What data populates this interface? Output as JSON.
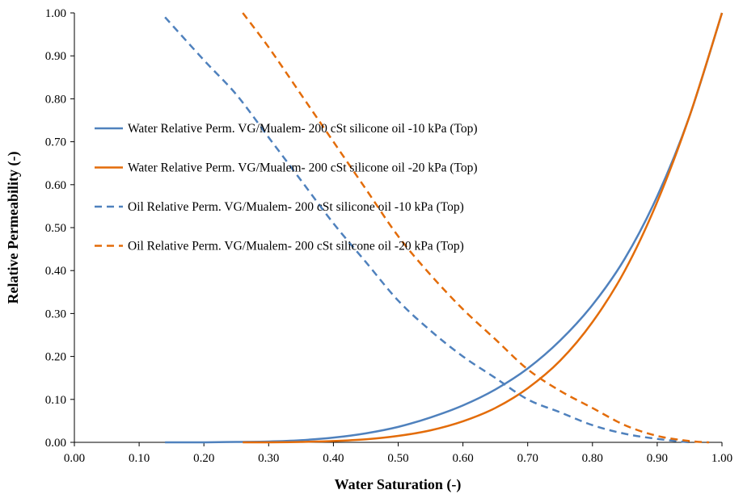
{
  "chart_data": {
    "type": "line",
    "title": "",
    "xlabel": "Water Saturation (-)",
    "ylabel": "Relative Permeability (-)",
    "xlim": [
      0,
      1
    ],
    "ylim": [
      0,
      1
    ],
    "xticks": [
      "0.00",
      "0.10",
      "0.20",
      "0.30",
      "0.40",
      "0.50",
      "0.60",
      "0.70",
      "0.80",
      "0.90",
      "1.00"
    ],
    "yticks": [
      "0.00",
      "0.10",
      "0.20",
      "0.30",
      "0.40",
      "0.50",
      "0.60",
      "0.70",
      "0.80",
      "0.90",
      "1.00"
    ],
    "grid": false,
    "legend_position": "center-left",
    "series": [
      {
        "name": "Water Relative Perm. VG/Mualem- 200 cSt silicone oil -10 kPa (Top)",
        "color": "#4f81bd",
        "dash": "solid",
        "x": [
          0.14,
          0.2,
          0.25,
          0.3,
          0.35,
          0.4,
          0.45,
          0.5,
          0.55,
          0.6,
          0.65,
          0.7,
          0.75,
          0.8,
          0.85,
          0.9,
          0.95,
          1.0
        ],
        "y": [
          0.0,
          0.0,
          0.001,
          0.002,
          0.005,
          0.011,
          0.021,
          0.036,
          0.058,
          0.086,
          0.123,
          0.172,
          0.237,
          0.32,
          0.428,
          0.573,
          0.76,
          1.0
        ]
      },
      {
        "name": "Water Relative Perm. VG/Mualem- 200 cSt silicone oil -20 kPa (Top)",
        "color": "#e36c09",
        "dash": "solid",
        "x": [
          0.26,
          0.3,
          0.35,
          0.4,
          0.45,
          0.5,
          0.55,
          0.6,
          0.65,
          0.7,
          0.75,
          0.8,
          0.85,
          0.9,
          0.95,
          1.0
        ],
        "y": [
          0.0,
          0.0,
          0.001,
          0.003,
          0.007,
          0.015,
          0.028,
          0.049,
          0.08,
          0.126,
          0.19,
          0.28,
          0.4,
          0.56,
          0.76,
          1.0
        ]
      },
      {
        "name": "Oil  Relative Perm. VG/Mualem- 200 cSt silicone oil -10 kPa (Top)",
        "color": "#4f81bd",
        "dash": "dashed",
        "x": [
          0.14,
          0.2,
          0.25,
          0.3,
          0.35,
          0.4,
          0.45,
          0.5,
          0.55,
          0.6,
          0.65,
          0.7,
          0.75,
          0.8,
          0.85,
          0.9,
          0.95
        ],
        "y": [
          0.99,
          0.89,
          0.81,
          0.71,
          0.61,
          0.51,
          0.42,
          0.33,
          0.26,
          0.2,
          0.15,
          0.1,
          0.07,
          0.04,
          0.02,
          0.008,
          0.0
        ]
      },
      {
        "name": "Oil  Relative Perm. VG/Mualem- 200 cSt silicone oil -20 kPa (Top)",
        "color": "#e36c09",
        "dash": "dashed",
        "x": [
          0.26,
          0.3,
          0.35,
          0.4,
          0.45,
          0.5,
          0.55,
          0.6,
          0.65,
          0.7,
          0.75,
          0.8,
          0.85,
          0.9,
          0.95,
          0.98
        ],
        "y": [
          1.0,
          0.92,
          0.81,
          0.7,
          0.59,
          0.48,
          0.39,
          0.31,
          0.24,
          0.17,
          0.12,
          0.08,
          0.04,
          0.015,
          0.003,
          0.0
        ]
      }
    ]
  }
}
